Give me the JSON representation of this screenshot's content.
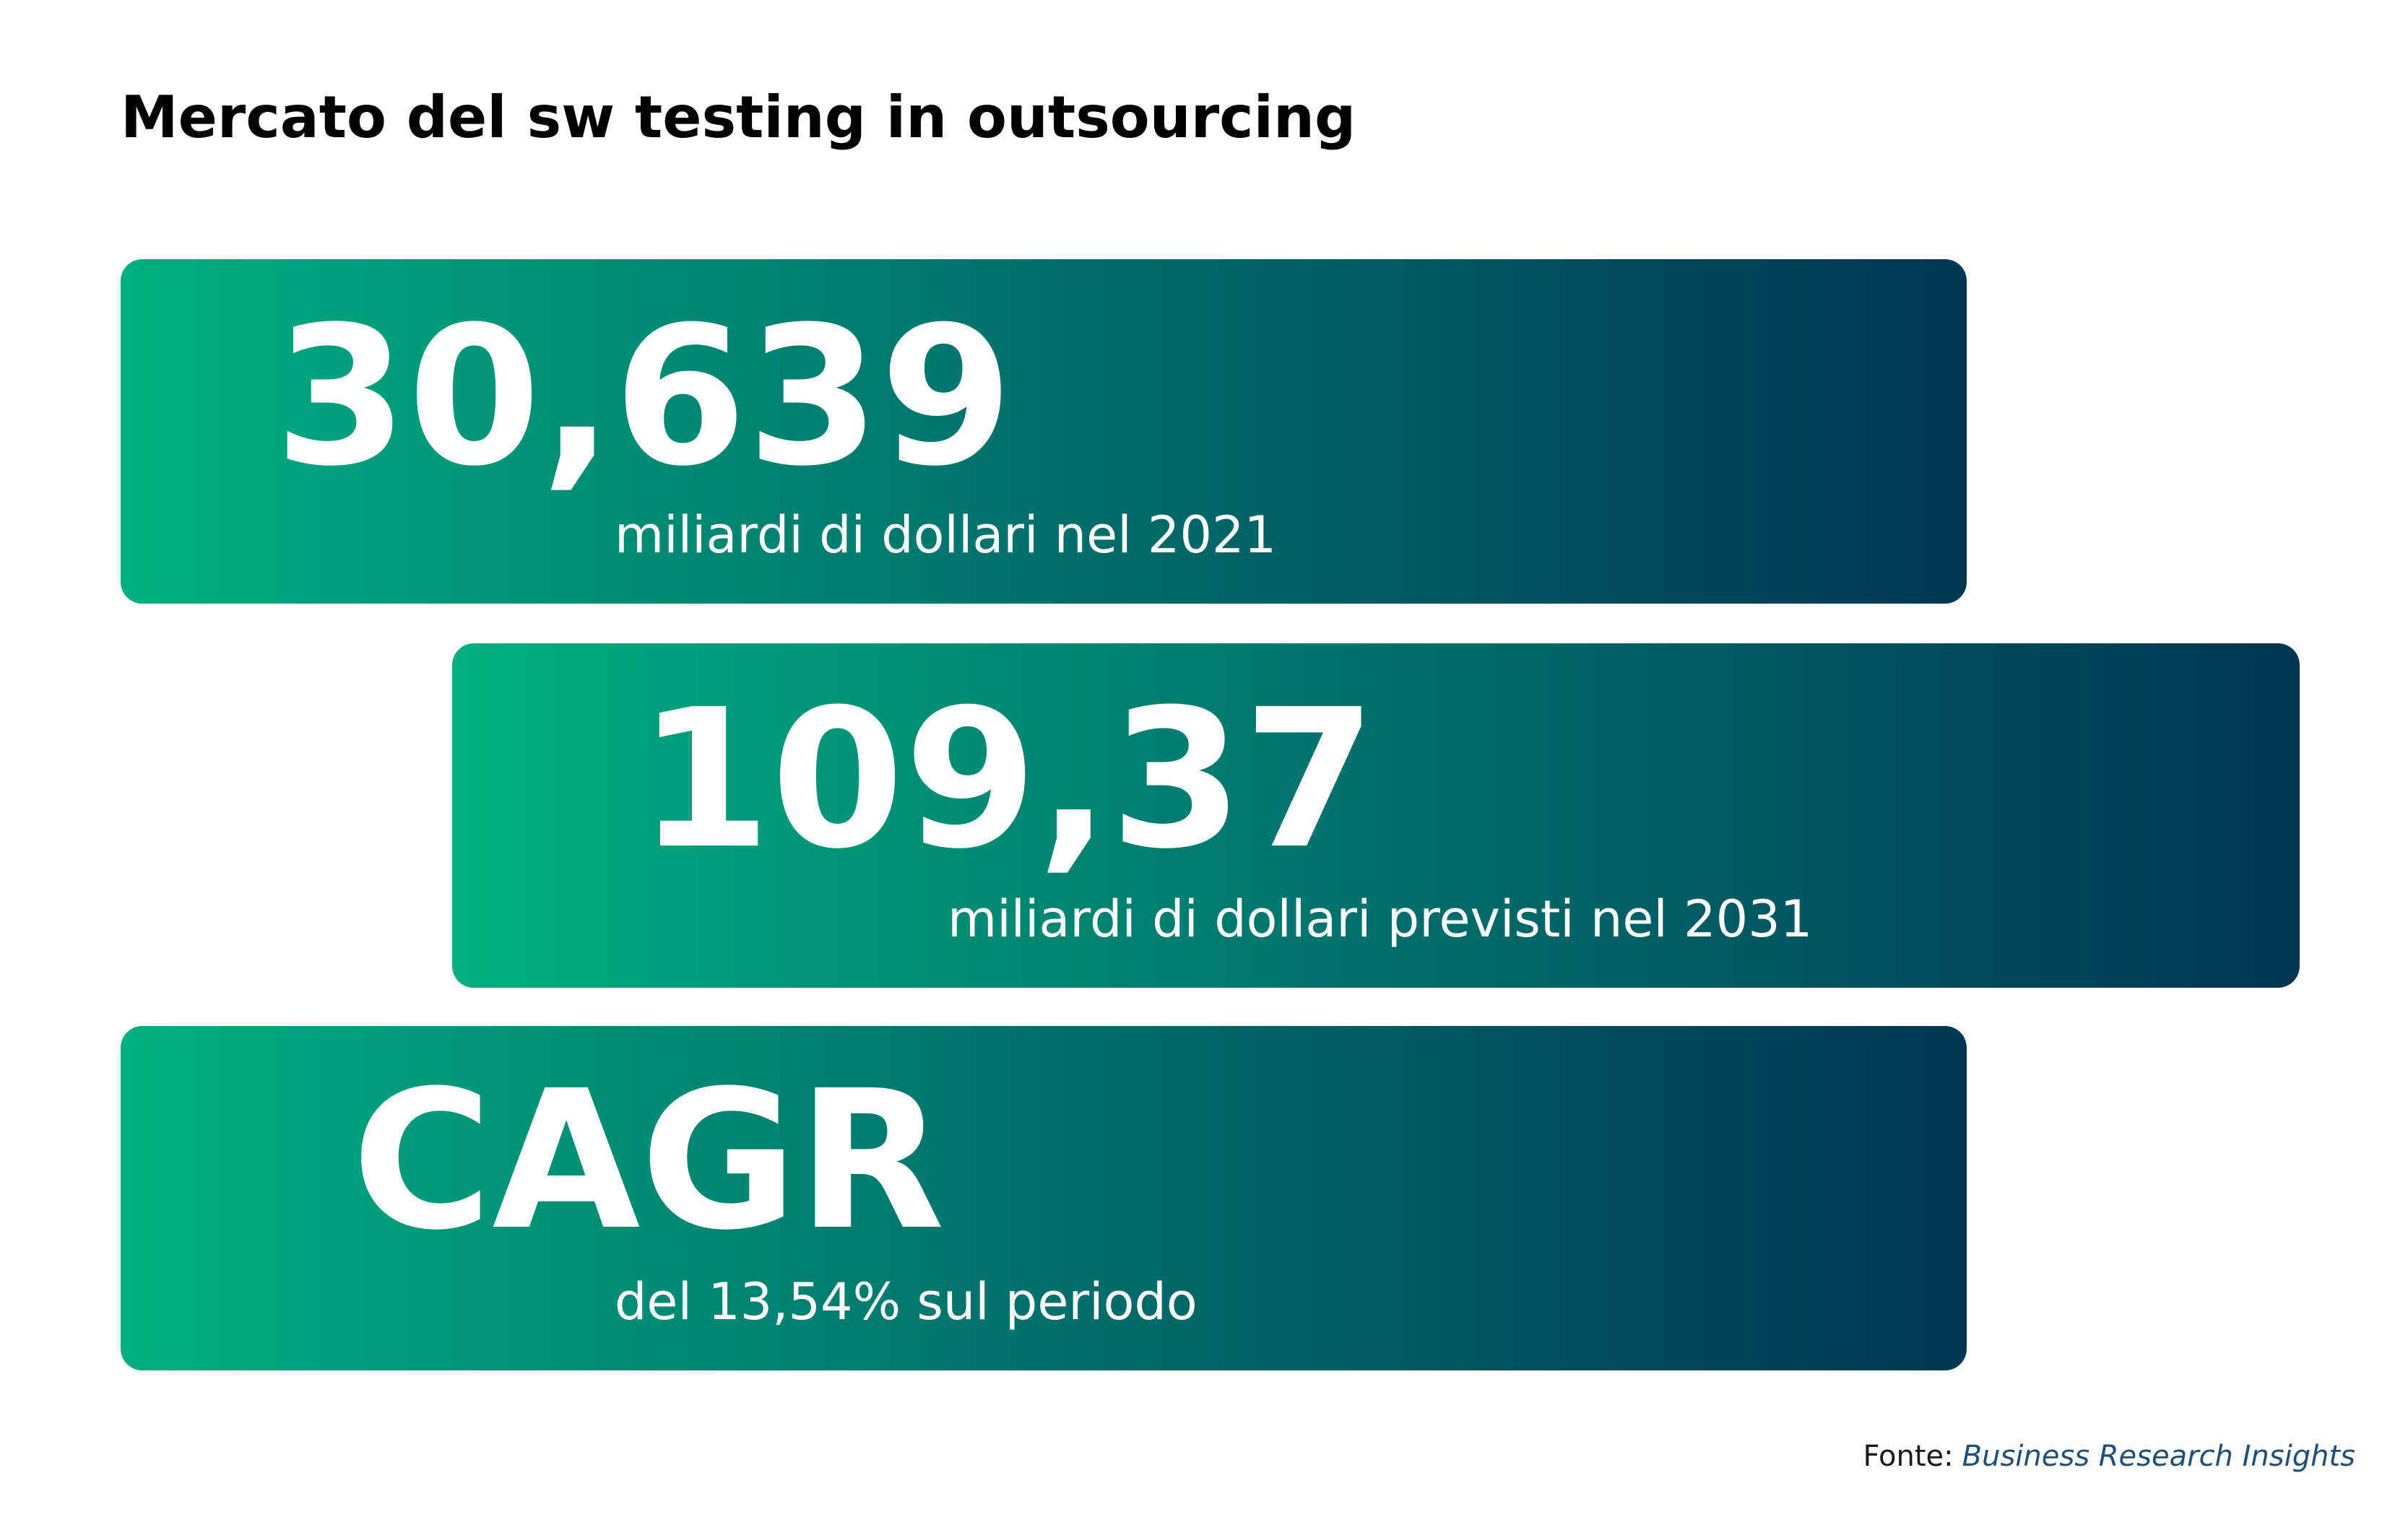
{
  "header": {
    "title": "Mercato del sw testing in outsourcing"
  },
  "cards": [
    {
      "value": "30,639",
      "caption": "miliardi di dollari nel 2021"
    },
    {
      "value": "109,37",
      "caption": "miliardi di dollari previsti nel 2031"
    },
    {
      "value": "CAGR",
      "caption": "del 13,54% sul periodo"
    }
  ],
  "source": {
    "label": "Fonte:",
    "name": "Business Research Insights"
  }
}
